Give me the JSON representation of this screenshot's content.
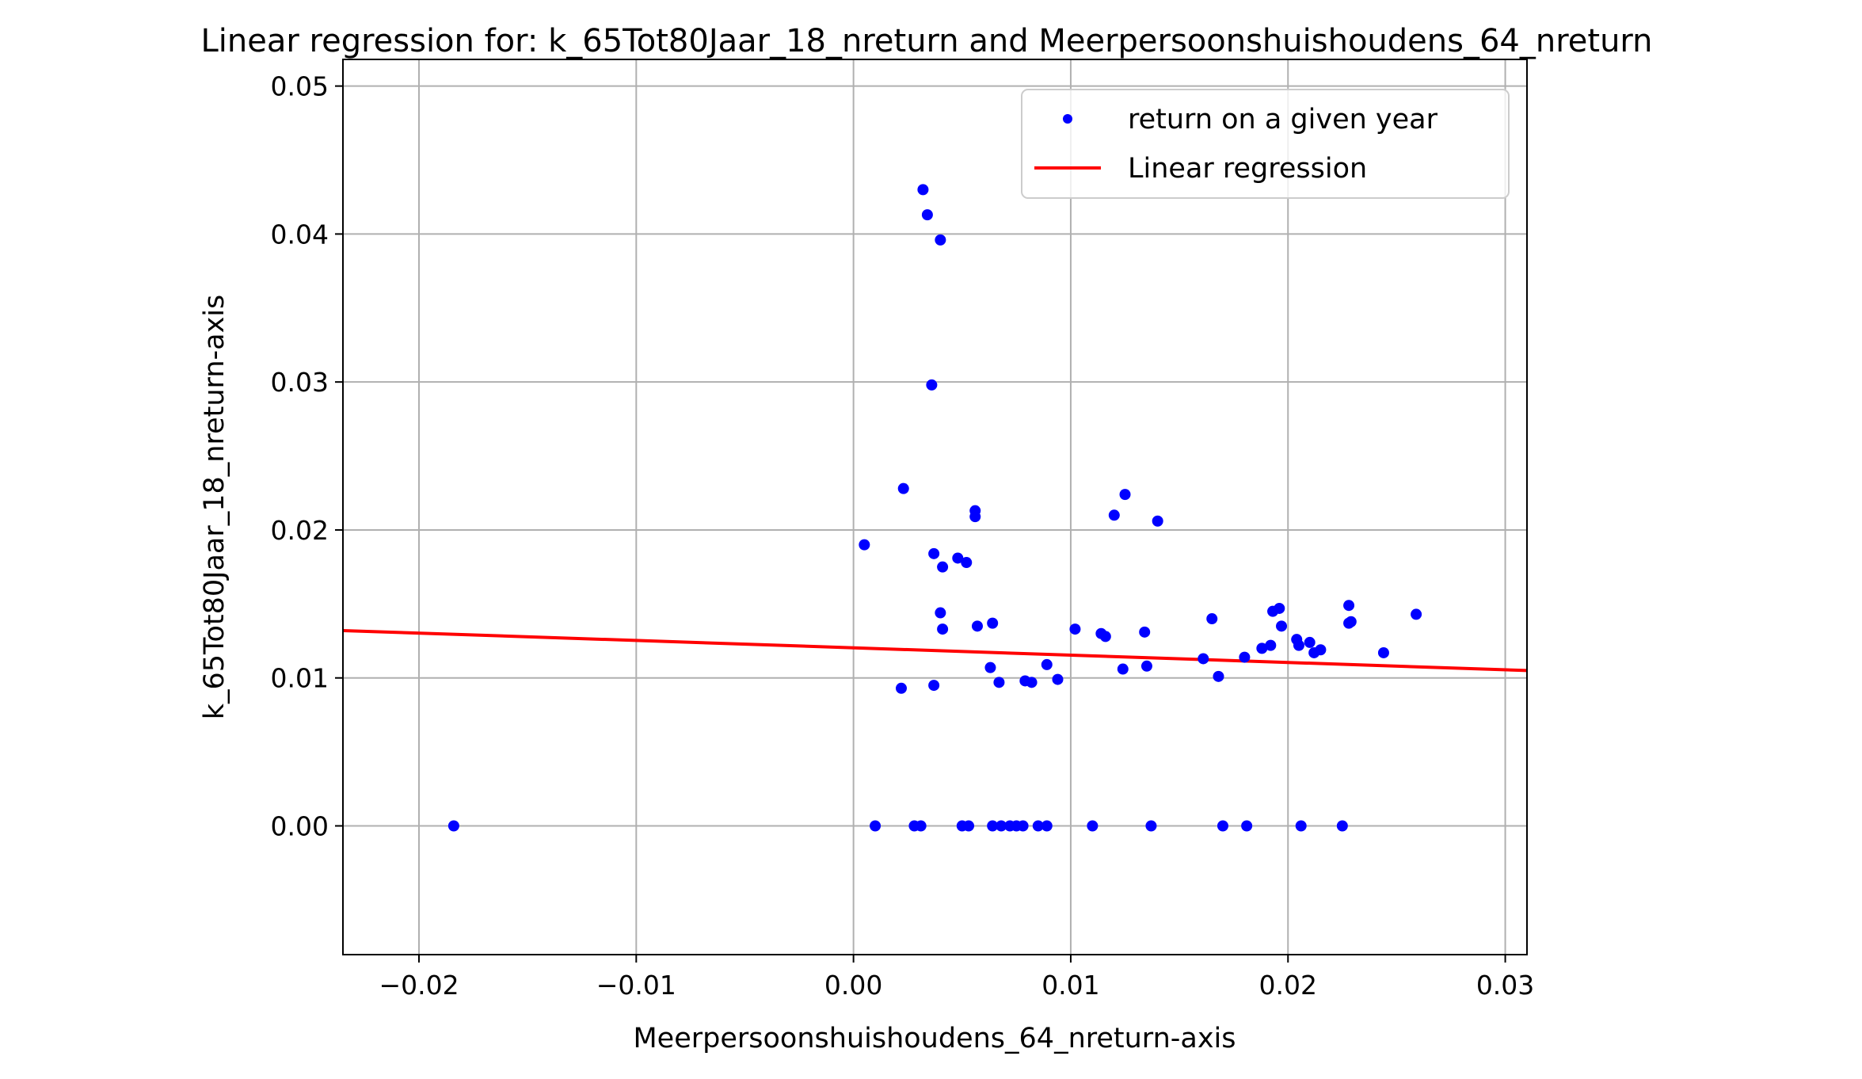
{
  "chart_data": {
    "type": "scatter",
    "title": "Linear regression for: k_65Tot80Jaar_18_nreturn and Meerpersoonshuishoudens_64_nreturn",
    "xlabel": "Meerpersoonshuishoudens_64_nreturn-axis",
    "ylabel": "k_65Tot80Jaar_18_nreturn-axis",
    "xlim": [
      -0.0235,
      0.031
    ],
    "ylim": [
      -0.0087,
      0.0518
    ],
    "x_ticks": [
      {
        "value": -0.02,
        "label": "−0.02"
      },
      {
        "value": -0.01,
        "label": "−0.01"
      },
      {
        "value": 0.0,
        "label": "0.00"
      },
      {
        "value": 0.01,
        "label": "0.01"
      },
      {
        "value": 0.02,
        "label": "0.02"
      },
      {
        "value": 0.03,
        "label": "0.03"
      }
    ],
    "y_ticks": [
      {
        "value": 0.0,
        "label": "0.00"
      },
      {
        "value": 0.01,
        "label": "0.01"
      },
      {
        "value": 0.02,
        "label": "0.02"
      },
      {
        "value": 0.03,
        "label": "0.03"
      },
      {
        "value": 0.04,
        "label": "0.04"
      },
      {
        "value": 0.05,
        "label": "0.05"
      }
    ],
    "grid": true,
    "legend_position": "top-right",
    "series": [
      {
        "name": "return on a given year",
        "kind": "scatter",
        "color": "#0000ff",
        "points": [
          [
            -0.0184,
            0.0
          ],
          [
            0.001,
            0.0
          ],
          [
            0.0028,
            0.0
          ],
          [
            0.0031,
            0.0
          ],
          [
            0.005,
            0.0
          ],
          [
            0.0053,
            0.0
          ],
          [
            0.0064,
            0.0
          ],
          [
            0.0068,
            0.0
          ],
          [
            0.0072,
            0.0
          ],
          [
            0.0075,
            0.0
          ],
          [
            0.0078,
            0.0
          ],
          [
            0.0085,
            0.0
          ],
          [
            0.0089,
            0.0
          ],
          [
            0.011,
            0.0
          ],
          [
            0.0137,
            0.0
          ],
          [
            0.017,
            0.0
          ],
          [
            0.0181,
            0.0
          ],
          [
            0.0206,
            0.0
          ],
          [
            0.0225,
            0.0
          ],
          [
            0.0032,
            0.043
          ],
          [
            0.0034,
            0.0413
          ],
          [
            0.004,
            0.0396
          ],
          [
            0.0036,
            0.0298
          ],
          [
            0.0023,
            0.0228
          ],
          [
            0.0056,
            0.0213
          ],
          [
            0.0056,
            0.0209
          ],
          [
            0.0005,
            0.019
          ],
          [
            0.0037,
            0.0184
          ],
          [
            0.0048,
            0.0181
          ],
          [
            0.0052,
            0.0178
          ],
          [
            0.0041,
            0.0175
          ],
          [
            0.004,
            0.0144
          ],
          [
            0.0041,
            0.0133
          ],
          [
            0.0057,
            0.0135
          ],
          [
            0.0064,
            0.0137
          ],
          [
            0.0063,
            0.0107
          ],
          [
            0.0067,
            0.0097
          ],
          [
            0.0079,
            0.0098
          ],
          [
            0.0082,
            0.0097
          ],
          [
            0.0089,
            0.0109
          ],
          [
            0.0094,
            0.0099
          ],
          [
            0.0022,
            0.0093
          ],
          [
            0.0037,
            0.0095
          ],
          [
            0.0102,
            0.0133
          ],
          [
            0.0114,
            0.013
          ],
          [
            0.0116,
            0.0128
          ],
          [
            0.012,
            0.021
          ],
          [
            0.0125,
            0.0224
          ],
          [
            0.0124,
            0.0106
          ],
          [
            0.0134,
            0.0131
          ],
          [
            0.0135,
            0.0108
          ],
          [
            0.014,
            0.0206
          ],
          [
            0.0161,
            0.0113
          ],
          [
            0.0165,
            0.014
          ],
          [
            0.0168,
            0.0101
          ],
          [
            0.018,
            0.0114
          ],
          [
            0.0188,
            0.012
          ],
          [
            0.0192,
            0.0122
          ],
          [
            0.0193,
            0.0145
          ],
          [
            0.0196,
            0.0147
          ],
          [
            0.0197,
            0.0135
          ],
          [
            0.0204,
            0.0126
          ],
          [
            0.0205,
            0.0122
          ],
          [
            0.021,
            0.0124
          ],
          [
            0.0212,
            0.0117
          ],
          [
            0.0215,
            0.0119
          ],
          [
            0.0228,
            0.0149
          ],
          [
            0.0229,
            0.0138
          ],
          [
            0.0228,
            0.0137
          ],
          [
            0.0244,
            0.0117
          ],
          [
            0.0259,
            0.0143
          ]
        ]
      },
      {
        "name": "Linear regression",
        "kind": "line",
        "color": "#ff0000",
        "points": [
          [
            -0.0235,
            0.0132
          ],
          [
            0.031,
            0.0105
          ]
        ]
      }
    ]
  }
}
